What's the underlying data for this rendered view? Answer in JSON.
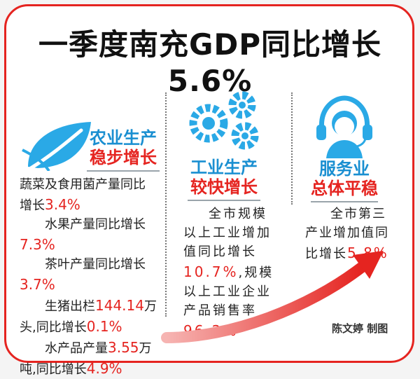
{
  "title": "一季度南充GDP同比增长5.6%",
  "agriculture": {
    "title_line1": "农业生产",
    "title_line2": "稳步增长",
    "items": [
      {
        "pre1": "蔬菜及食用菌产量同比",
        "pre2": "增长",
        "value": "3.4%",
        "post": ""
      },
      {
        "pre1": "水果产量同比增长",
        "pre2": "",
        "value": "7.3%",
        "post": ""
      },
      {
        "pre1": "茶叶产量同比增长",
        "pre2": "",
        "value": "3.7%",
        "post": ""
      },
      {
        "pre1": "生猪出栏",
        "value": "144.14",
        "unit": "万",
        "pre2": "头,同比增长",
        "value2": "0.1%"
      },
      {
        "pre1": "水产品产量",
        "value": "3.55",
        "unit": "万",
        "pre2": "吨,同比增长",
        "value2": "4.9%"
      }
    ]
  },
  "industry": {
    "title_line1": "工业生产",
    "title_line2": "较快增长",
    "lines": [
      "全市规模",
      "以上工业增加",
      "值同比增长"
    ],
    "value1": "10.7%",
    "tail1": ",规模",
    "lines2": [
      "以上工业企业",
      "产品销售率"
    ],
    "value2": "96.2%"
  },
  "service": {
    "title_line1": "服务业",
    "title_line2": "总体平稳",
    "lines": [
      "全市第三",
      "产业增加值同"
    ],
    "pre": "比增长",
    "value": "5.8%"
  },
  "credit": "陈文婷  制图",
  "colors": {
    "accent_red": "#e52420",
    "accent_blue": "#1a8fd1",
    "icon_blue": "#2aa9e6"
  }
}
